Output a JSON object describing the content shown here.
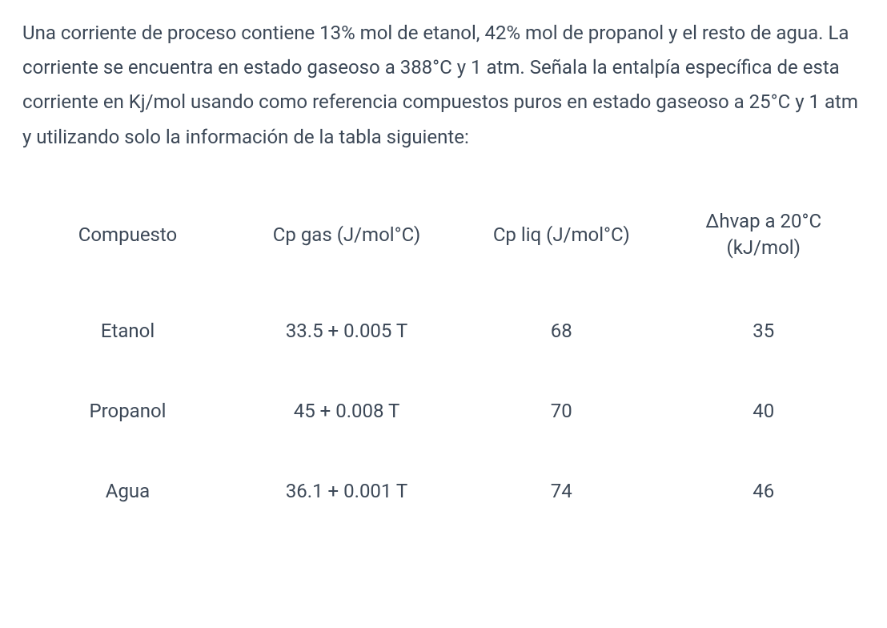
{
  "problem_text": "Una corriente de proceso contiene 13% mol de etanol, 42% mol de propanol y el resto de agua. La corriente se encuentra en estado gaseoso a 388°C y 1 atm. Señala  la entalpía específica de esta corriente en Kj/mol usando como referencia compuestos puros en estado gaseoso a 25°C y 1 atm y utilizando solo la información de la tabla siguiente:",
  "table": {
    "headers": {
      "compound": "Compuesto",
      "cp_gas": "Cp gas (J/mol°C)",
      "cp_liq": "Cp liq (J/mol°C)",
      "hvap_line1": "Δhvap a 20°C",
      "hvap_line2": "(kJ/mol)"
    },
    "rows": [
      {
        "compound": "Etanol",
        "cp_gas": "33.5 + 0.005 T",
        "cp_liq": "68",
        "hvap": "35"
      },
      {
        "compound": "Propanol",
        "cp_gas": "45 + 0.008 T",
        "cp_liq": "70",
        "hvap": "40"
      },
      {
        "compound": "Agua",
        "cp_gas": "36.1 + 0.001 T",
        "cp_liq": "74",
        "hvap": "46"
      }
    ]
  },
  "style": {
    "text_color": "#3c4857",
    "background_color": "#ffffff",
    "font_size_body": 24,
    "font_size_table": 24,
    "line_height": 1.8
  }
}
